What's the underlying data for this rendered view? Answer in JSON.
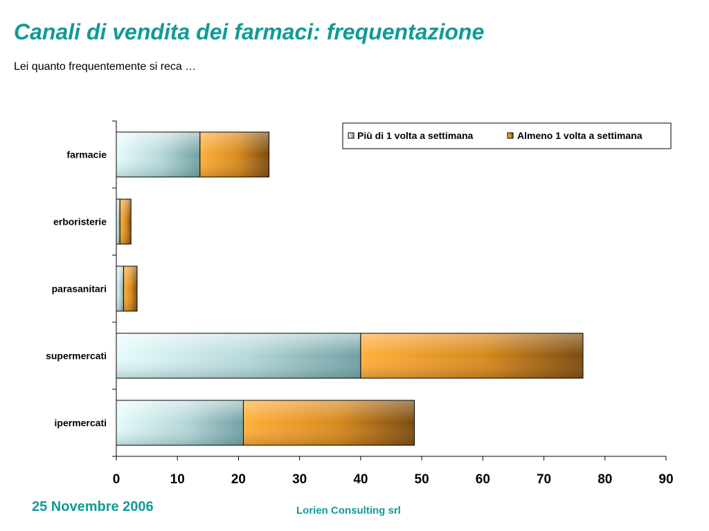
{
  "page": {
    "title": "Canali di vendita dei farmaci: frequentazione",
    "subtitle": "Lei quanto frequentemente si reca …",
    "date": "25 Novembre 2006",
    "company": "Lorien Consulting srl"
  },
  "chart_data": {
    "type": "bar",
    "orientation": "horizontal",
    "stacked": true,
    "categories": [
      "farmacie",
      "erboristerie",
      "parasanitari",
      "supermercati",
      "ipermercati"
    ],
    "series": [
      {
        "name": "Più di 1 volta a settimana",
        "values": [
          13.7,
          0.6,
          1.2,
          40.0,
          20.8
        ],
        "color": "#8fbfc2"
      },
      {
        "name": "Almeno 1 volta a settimana",
        "values": [
          11.3,
          1.8,
          2.2,
          36.4,
          28.0
        ],
        "color": "#d98a1a"
      }
    ],
    "xlim": [
      0,
      90
    ],
    "xticks": [
      "0",
      "10",
      "20",
      "30",
      "40",
      "50",
      "60",
      "70",
      "80",
      "90"
    ],
    "grid": false,
    "legend": "top-right"
  }
}
